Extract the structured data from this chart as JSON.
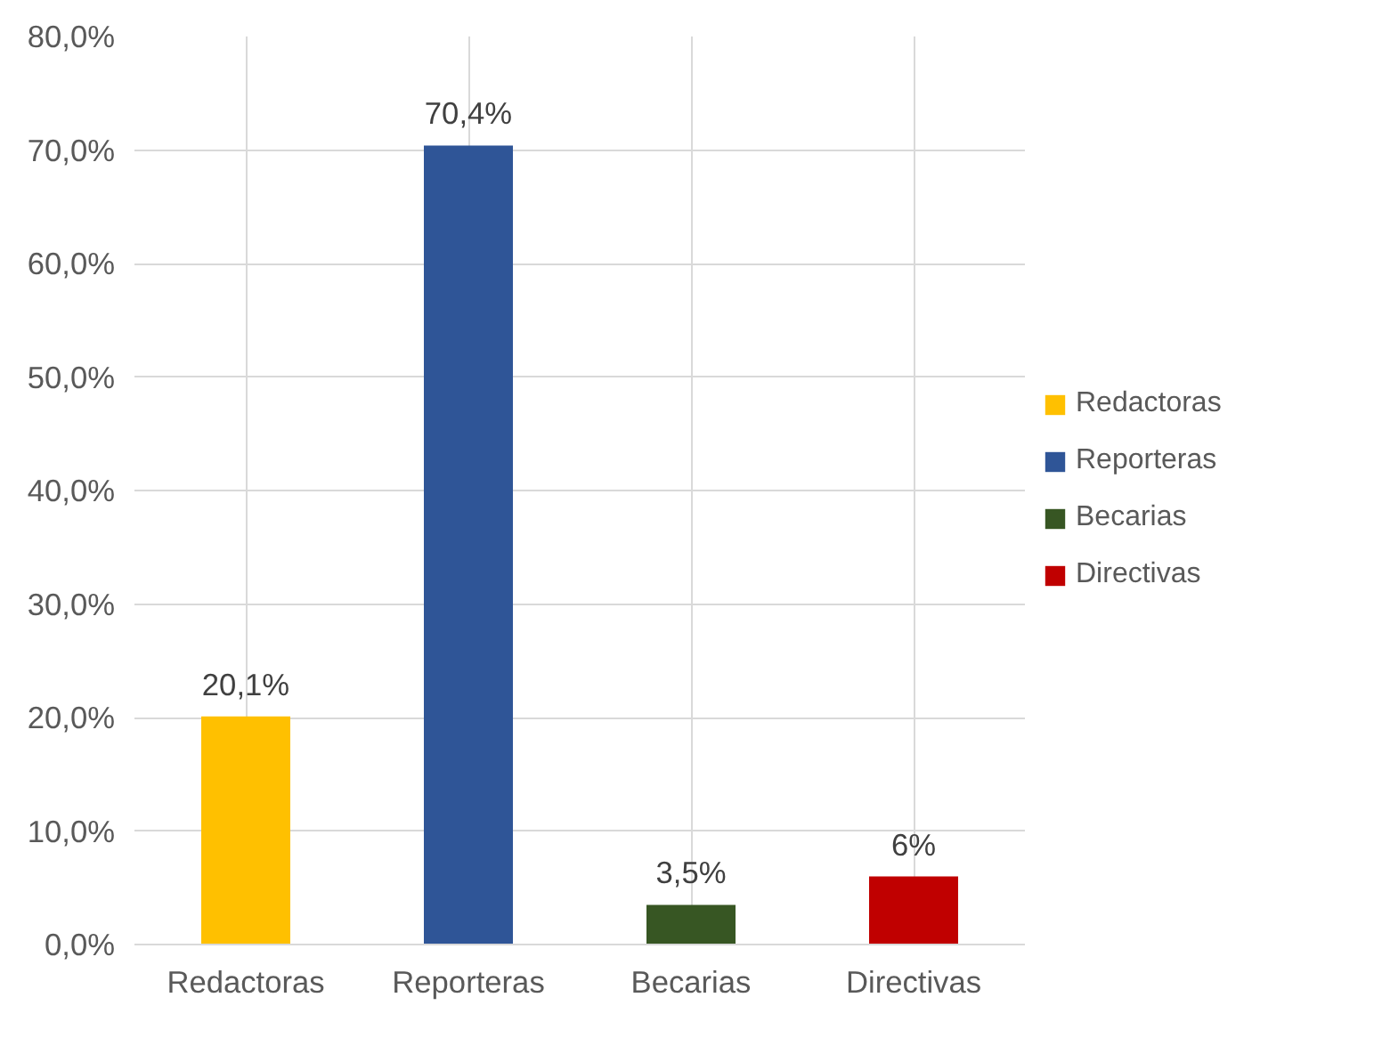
{
  "chart_data": {
    "type": "bar",
    "categories": [
      "Redactoras",
      "Reporteras",
      "Becarias",
      "Directivas"
    ],
    "series": [
      {
        "name": "Redactoras",
        "color": "#ffc000",
        "values": [
          20.1,
          null,
          null,
          null
        ],
        "value_labels": [
          "20,1%",
          null,
          null,
          null
        ]
      },
      {
        "name": "Reporteras",
        "color": "#2f5597",
        "values": [
          null,
          70.4,
          null,
          null
        ],
        "value_labels": [
          null,
          "70,4%",
          null,
          null
        ]
      },
      {
        "name": "Becarias",
        "color": "#375623",
        "values": [
          null,
          null,
          3.5,
          null
        ],
        "value_labels": [
          null,
          null,
          "3,5%",
          null
        ]
      },
      {
        "name": "Directivas",
        "color": "#c00000",
        "values": [
          null,
          null,
          null,
          6
        ],
        "value_labels": [
          null,
          null,
          null,
          "6%"
        ]
      }
    ],
    "ylim": [
      0,
      80
    ],
    "yticks": [
      {
        "value": 0,
        "label": "0,0%"
      },
      {
        "value": 10,
        "label": "10,0%"
      },
      {
        "value": 20,
        "label": "20,0%"
      },
      {
        "value": 30,
        "label": "30,0%"
      },
      {
        "value": 40,
        "label": "40,0%"
      },
      {
        "value": 50,
        "label": "50,0%"
      },
      {
        "value": 60,
        "label": "60,0%"
      },
      {
        "value": 70,
        "label": "70,0%"
      },
      {
        "value": 80,
        "label": "80,0%"
      }
    ],
    "grid": true,
    "legend": "right"
  }
}
